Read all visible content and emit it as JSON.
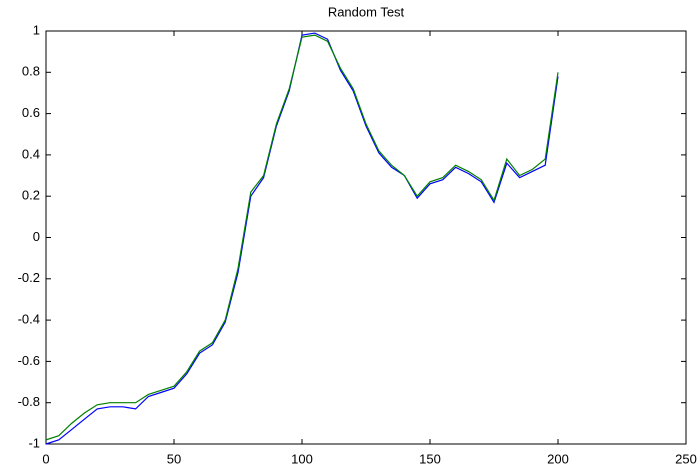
{
  "chart_data": {
    "type": "line",
    "title": "Random Test",
    "x": [
      0,
      5,
      10,
      15,
      20,
      25,
      30,
      35,
      40,
      45,
      50,
      55,
      60,
      65,
      70,
      75,
      80,
      85,
      90,
      95,
      100,
      105,
      110,
      115,
      120,
      125,
      130,
      135,
      140,
      145,
      150,
      155,
      160,
      165,
      170,
      175,
      180,
      185,
      190,
      195,
      200
    ],
    "series": [
      {
        "color": "#0000ff",
        "values": [
          -1.0,
          -0.98,
          -0.93,
          -0.88,
          -0.83,
          -0.82,
          -0.82,
          -0.83,
          -0.77,
          -0.75,
          -0.73,
          -0.66,
          -0.56,
          -0.52,
          -0.41,
          -0.17,
          0.2,
          0.29,
          0.54,
          0.71,
          0.98,
          0.99,
          0.96,
          0.81,
          0.71,
          0.54,
          0.41,
          0.34,
          0.3,
          0.19,
          0.26,
          0.28,
          0.34,
          0.31,
          0.27,
          0.17,
          0.36,
          0.29,
          0.32,
          0.35,
          0.78
        ]
      },
      {
        "color": "#008000",
        "values": [
          -0.98,
          -0.96,
          -0.9,
          -0.85,
          -0.81,
          -0.8,
          -0.8,
          -0.8,
          -0.76,
          -0.74,
          -0.72,
          -0.65,
          -0.55,
          -0.51,
          -0.4,
          -0.15,
          0.22,
          0.3,
          0.55,
          0.72,
          0.97,
          0.98,
          0.95,
          0.82,
          0.72,
          0.55,
          0.42,
          0.35,
          0.3,
          0.2,
          0.27,
          0.29,
          0.35,
          0.32,
          0.28,
          0.18,
          0.38,
          0.3,
          0.33,
          0.38,
          0.8
        ]
      }
    ],
    "xlim": [
      0,
      250
    ],
    "xticks": [
      0,
      50,
      100,
      150,
      200,
      250
    ],
    "ylim": [
      -1,
      1
    ],
    "yticks": [
      -1,
      -0.8,
      -0.6,
      -0.4,
      -0.2,
      0,
      0.2,
      0.4,
      0.6,
      0.8,
      1
    ],
    "grid": false
  }
}
